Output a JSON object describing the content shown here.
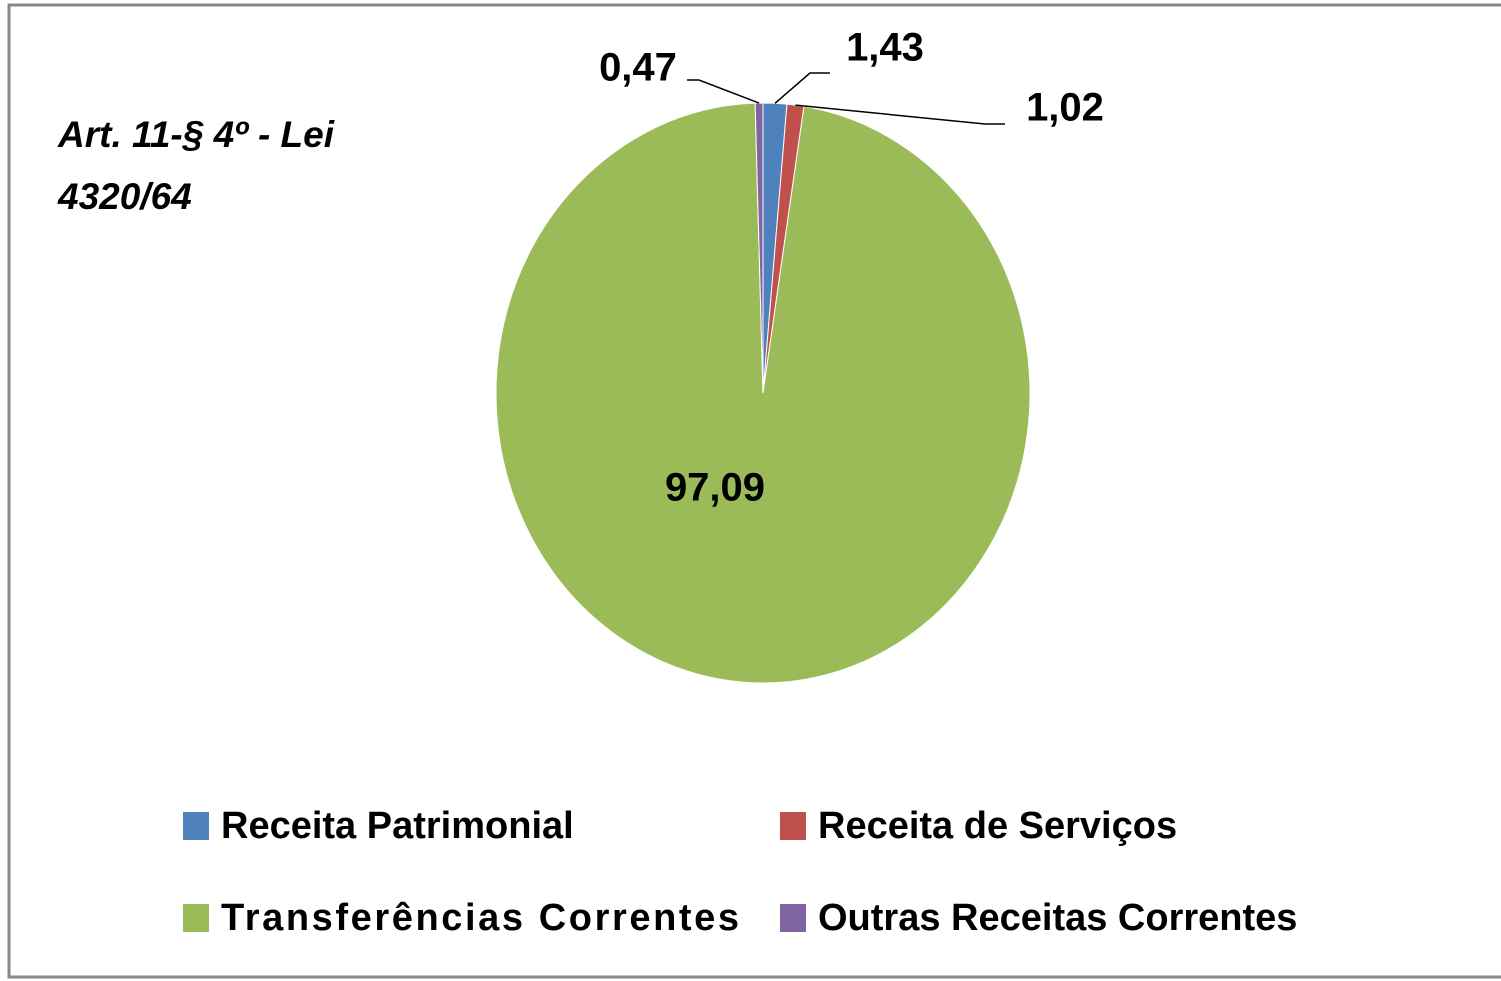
{
  "chart_data": {
    "type": "pie",
    "annotation": "Art. 11-§ 4º - Lei 4320/64",
    "categories": [
      "Receita Patrimonial",
      "Receita de Serviços",
      "Transferências Correntes",
      "Outras Receitas Correntes"
    ],
    "values": [
      1.43,
      1.02,
      97.09,
      0.47
    ],
    "value_labels": [
      "1,43",
      "1,02",
      "97,09",
      "0,47"
    ],
    "colors": [
      "#4f81bd",
      "#c0504d",
      "#9bbb59",
      "#8064a2"
    ],
    "legend": "bottom"
  }
}
